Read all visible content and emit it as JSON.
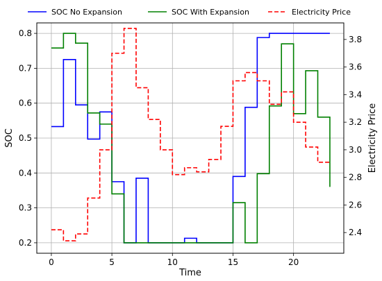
{
  "chart_data": {
    "type": "line",
    "step": "post",
    "title": "",
    "xlabel": "Time",
    "ylabel": "SOC",
    "y2label": "Electricity Price",
    "xlim": [
      -1.2,
      24.15
    ],
    "ylim": [
      0.17,
      0.83
    ],
    "y2lim": [
      2.25,
      3.92
    ],
    "xticks": [
      0,
      5,
      10,
      15,
      20
    ],
    "yticks": [
      0.2,
      0.3,
      0.4,
      0.5,
      0.6,
      0.7,
      0.8
    ],
    "y2ticks": [
      2.4,
      2.6,
      2.8,
      3.0,
      3.2,
      3.4,
      3.6,
      3.8
    ],
    "y2tick_decimals": 1,
    "ytick_decimals": 1,
    "grid": true,
    "legend": "top, outside plot, single row",
    "x": [
      0,
      1,
      2,
      3,
      4,
      5,
      6,
      7,
      8,
      9,
      10,
      11,
      12,
      13,
      14,
      15,
      16,
      17,
      18,
      19,
      20,
      21,
      22,
      23
    ],
    "series": [
      {
        "name": "SOC No Expansion",
        "axis": "left",
        "color": "#0000ff",
        "dash": "solid",
        "values": [
          0.533,
          0.725,
          0.595,
          0.497,
          0.575,
          0.375,
          0.2,
          0.385,
          0.2,
          0.2,
          0.2,
          0.213,
          0.2,
          0.2,
          0.2,
          0.39,
          0.588,
          0.788,
          0.8,
          0.8,
          0.8,
          0.8,
          0.8,
          0.8
        ]
      },
      {
        "name": "SOC With Expansion",
        "axis": "left",
        "color": "#008000",
        "dash": "solid",
        "values": [
          0.758,
          0.8,
          0.772,
          0.572,
          0.54,
          0.34,
          0.2,
          0.2,
          0.2,
          0.2,
          0.2,
          0.2,
          0.2,
          0.2,
          0.2,
          0.315,
          0.2,
          0.398,
          0.592,
          0.77,
          0.57,
          0.693,
          0.56,
          0.36
        ]
      },
      {
        "name": "Electricity Price",
        "axis": "right",
        "color": "#ff0000",
        "dash": "dashed",
        "values": [
          2.42,
          2.34,
          2.39,
          2.65,
          3.0,
          3.7,
          3.88,
          3.45,
          3.22,
          3.0,
          2.82,
          2.87,
          2.84,
          2.93,
          3.17,
          3.5,
          3.56,
          3.5,
          3.33,
          3.42,
          3.2,
          3.02,
          2.91,
          2.91
        ]
      }
    ]
  }
}
